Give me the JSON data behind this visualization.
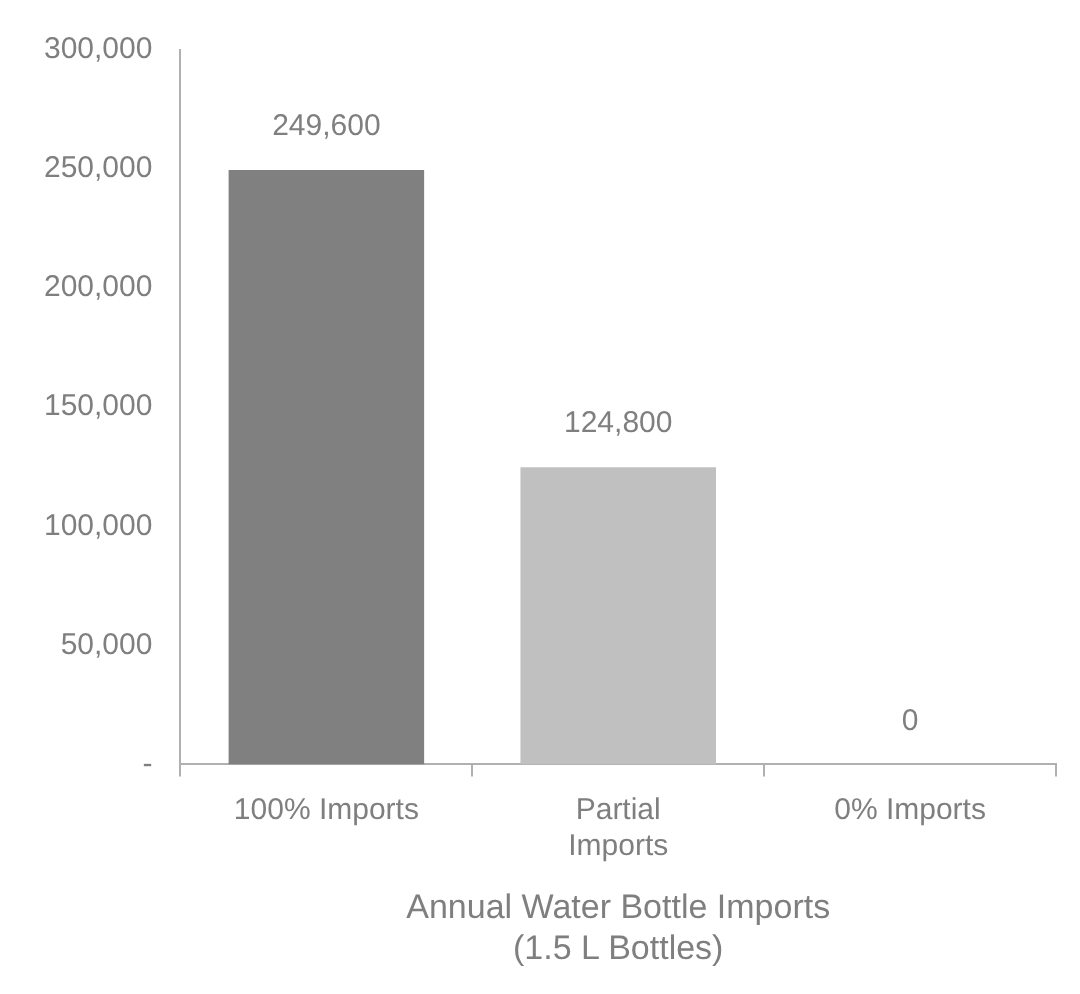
{
  "chart_data": {
    "type": "bar",
    "xlabel": "Annual Water Bottle Imports (1.5 L Bottles)",
    "categories": [
      "100% Imports",
      "Partial Imports",
      "0% Imports"
    ],
    "values": [
      249600,
      124800,
      0
    ],
    "value_labels": [
      "249,600",
      "124,800",
      "0"
    ],
    "colors": [
      "#808080",
      "#c0c0c0",
      "#c0c0c0"
    ],
    "ylim": [
      0,
      300000
    ],
    "yticks": [
      {
        "value": 0,
        "label": "-"
      },
      {
        "value": 50000,
        "label": "50,000"
      },
      {
        "value": 100000,
        "label": "100,000"
      },
      {
        "value": 150000,
        "label": "150,000"
      },
      {
        "value": 200000,
        "label": "200,000"
      },
      {
        "value": 250000,
        "label": "250,000"
      },
      {
        "value": 300000,
        "label": "300,000"
      }
    ],
    "grid": false,
    "legend": false
  }
}
